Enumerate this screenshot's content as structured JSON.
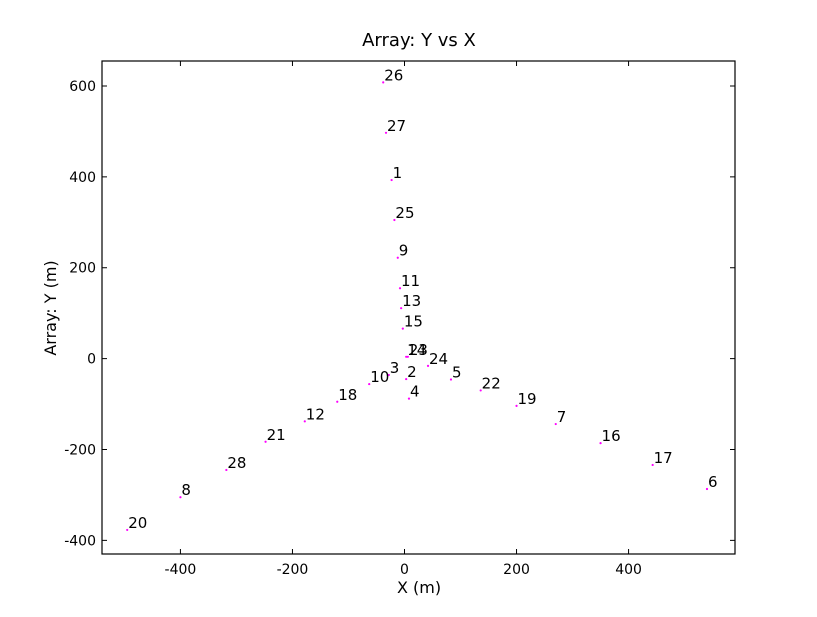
{
  "chart_data": {
    "type": "scatter",
    "title": "Array: Y  vs X",
    "xlabel": "X (m)",
    "ylabel": "Array: Y (m)",
    "xlim": [
      -540,
      590
    ],
    "ylim": [
      -430,
      655
    ],
    "xticks": [
      -400,
      -200,
      0,
      200,
      400
    ],
    "yticks": [
      -400,
      -200,
      0,
      200,
      400,
      600
    ],
    "grid": false,
    "marker_color": "#ff00ff",
    "points": [
      {
        "label": "26",
        "x": -38,
        "y": 608
      },
      {
        "label": "27",
        "x": -33,
        "y": 497
      },
      {
        "label": "1",
        "x": -23,
        "y": 393
      },
      {
        "label": "25",
        "x": -18,
        "y": 305
      },
      {
        "label": "9",
        "x": -12,
        "y": 222
      },
      {
        "label": "11",
        "x": -8,
        "y": 155
      },
      {
        "label": "13",
        "x": -6,
        "y": 111
      },
      {
        "label": "15",
        "x": -3,
        "y": 66
      },
      {
        "label": "14",
        "x": 3,
        "y": 4
      },
      {
        "label": "23",
        "x": 6,
        "y": 4
      },
      {
        "label": "24",
        "x": 42,
        "y": -16
      },
      {
        "label": "5",
        "x": 83,
        "y": -46
      },
      {
        "label": "3",
        "x": -28,
        "y": -36
      },
      {
        "label": "2",
        "x": 3,
        "y": -45
      },
      {
        "label": "10",
        "x": -63,
        "y": -56
      },
      {
        "label": "4",
        "x": 8,
        "y": -88
      },
      {
        "label": "18",
        "x": -120,
        "y": -95
      },
      {
        "label": "12",
        "x": -178,
        "y": -138
      },
      {
        "label": "22",
        "x": 136,
        "y": -70
      },
      {
        "label": "19",
        "x": 200,
        "y": -104
      },
      {
        "label": "7",
        "x": 270,
        "y": -144
      },
      {
        "label": "16",
        "x": 350,
        "y": -186
      },
      {
        "label": "17",
        "x": 443,
        "y": -234
      },
      {
        "label": "6",
        "x": 540,
        "y": -287
      },
      {
        "label": "21",
        "x": -248,
        "y": -183
      },
      {
        "label": "28",
        "x": -318,
        "y": -245
      },
      {
        "label": "8",
        "x": -400,
        "y": -305
      },
      {
        "label": "20",
        "x": -495,
        "y": -377
      }
    ]
  }
}
